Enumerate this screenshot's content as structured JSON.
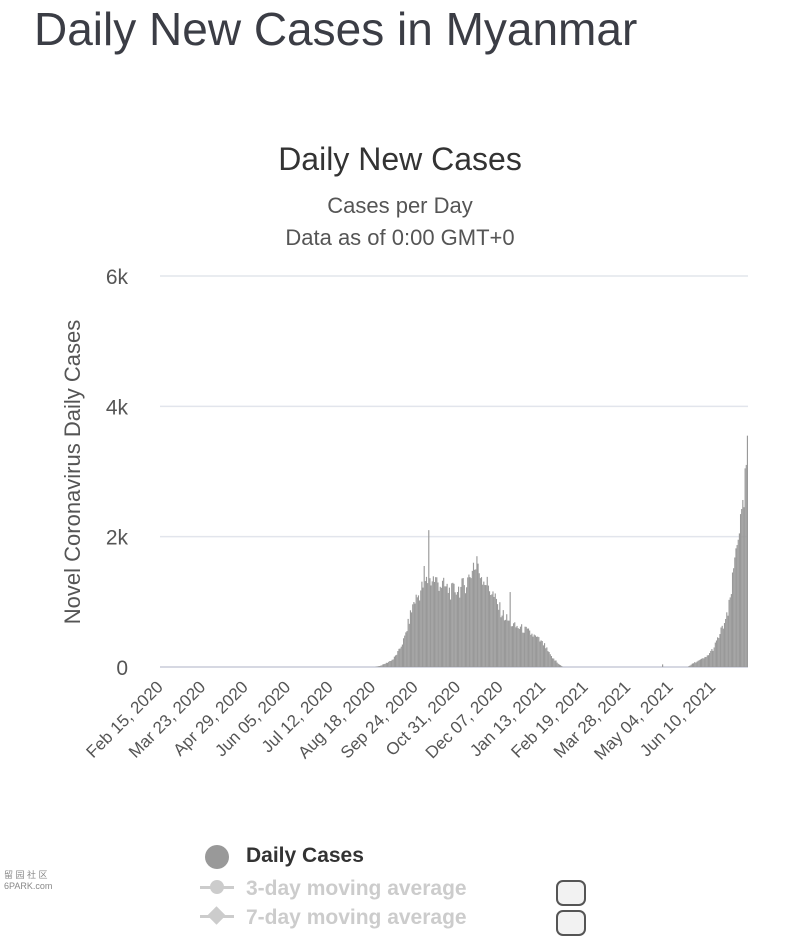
{
  "page": {
    "title": "Daily New Cases in Myanmar"
  },
  "watermark": {
    "line1": "留 园 社 区",
    "line2": "6PARK.com"
  },
  "chart_data": {
    "type": "bar",
    "title": "Daily New Cases",
    "subtitle_line1": "Cases per Day",
    "subtitle_line2": "Data as of 0:00 GMT+0",
    "xlabel": "",
    "ylabel": "Novel Coronavirus Daily Cases",
    "ylim": [
      0,
      6000
    ],
    "yticks": [
      0,
      2000,
      4000,
      6000
    ],
    "ytick_labels": [
      "0",
      "2k",
      "4k",
      "6k"
    ],
    "grid": true,
    "legend_position": "bottom",
    "x_start": "2020-02-15",
    "x_end": "2021-07-11",
    "xtick_labels": [
      "Feb 15, 2020",
      "Mar 23, 2020",
      "Apr 29, 2020",
      "Jun 05, 2020",
      "Jul 12, 2020",
      "Aug 18, 2020",
      "Sep 24, 2020",
      "Oct 31, 2020",
      "Dec 07, 2020",
      "Jan 13, 2021",
      "Feb 19, 2021",
      "Mar 28, 2021",
      "May 04, 2021",
      "Jun 10, 2021"
    ],
    "bar_color": "#999999",
    "series": [
      {
        "name": "Daily Cases",
        "keypoints": [
          [
            "2020-02-15",
            0
          ],
          [
            "2020-08-20",
            0
          ],
          [
            "2020-08-25",
            20
          ],
          [
            "2020-08-30",
            60
          ],
          [
            "2020-09-05",
            120
          ],
          [
            "2020-09-10",
            250
          ],
          [
            "2020-09-15",
            450
          ],
          [
            "2020-09-20",
            800
          ],
          [
            "2020-09-23",
            1000
          ],
          [
            "2020-09-27",
            1100
          ],
          [
            "2020-10-01",
            1250
          ],
          [
            "2020-10-03",
            1300
          ],
          [
            "2020-10-05",
            1320
          ],
          [
            "2020-10-07",
            1330
          ],
          [
            "2020-10-10",
            1350
          ],
          [
            "2020-10-14",
            1300
          ],
          [
            "2020-10-18",
            1250
          ],
          [
            "2020-10-22",
            1200
          ],
          [
            "2020-10-26",
            1150
          ],
          [
            "2020-10-30",
            1200
          ],
          [
            "2020-11-03",
            1200
          ],
          [
            "2020-11-08",
            1300
          ],
          [
            "2020-11-12",
            1450
          ],
          [
            "2020-11-16",
            1500
          ],
          [
            "2020-11-20",
            1450
          ],
          [
            "2020-11-25",
            1300
          ],
          [
            "2020-11-30",
            1150
          ],
          [
            "2020-12-05",
            950
          ],
          [
            "2020-12-10",
            800
          ],
          [
            "2020-12-15",
            700
          ],
          [
            "2020-12-20",
            620
          ],
          [
            "2020-12-25",
            600
          ],
          [
            "2020-12-30",
            560
          ],
          [
            "2021-01-04",
            500
          ],
          [
            "2021-01-10",
            420
          ],
          [
            "2021-01-15",
            330
          ],
          [
            "2021-01-20",
            180
          ],
          [
            "2021-01-25",
            80
          ],
          [
            "2021-01-31",
            0
          ],
          [
            "2021-05-20",
            0
          ],
          [
            "2021-05-25",
            60
          ],
          [
            "2021-05-30",
            100
          ],
          [
            "2021-06-05",
            150
          ],
          [
            "2021-06-12",
            300
          ],
          [
            "2021-06-18",
            550
          ],
          [
            "2021-06-24",
            800
          ],
          [
            "2021-06-28",
            1300
          ],
          [
            "2021-07-02",
            2000
          ],
          [
            "2021-07-07",
            2300
          ],
          [
            "2021-07-10",
            3000
          ]
        ],
        "spikes": [
          [
            "2020-10-06",
            2100
          ],
          [
            "2020-11-17",
            1700
          ],
          [
            "2020-11-14",
            1600
          ],
          [
            "2020-12-16",
            1150
          ],
          [
            "2020-10-02",
            1550
          ],
          [
            "2021-01-25",
            100
          ],
          [
            "2021-04-28",
            40
          ],
          [
            "2021-07-11",
            3550
          ],
          [
            "2021-07-04",
            2050
          ]
        ]
      }
    ]
  },
  "legend": {
    "items": [
      {
        "label": "Daily Cases",
        "active": true
      },
      {
        "label": "3-day moving average",
        "active": false
      },
      {
        "label": "7-day moving average",
        "active": false
      }
    ]
  }
}
